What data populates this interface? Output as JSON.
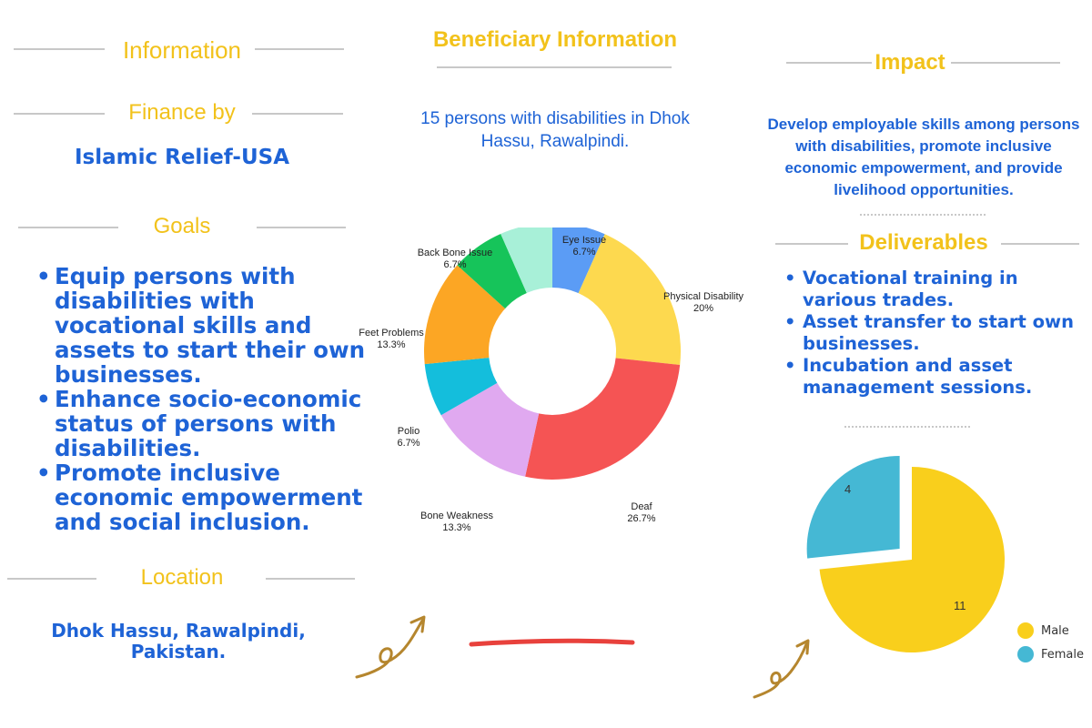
{
  "left": {
    "information_title": "Information",
    "finance_title": "Finance by",
    "finance_value": "Islamic Relief-USA",
    "goals_title": "Goals",
    "goals": [
      "Equip persons with disabilities with vocational skills and assets to start their own businesses.",
      "Enhance socio-economic status of persons with disabilities.",
      "Promote inclusive economic empowerment and social inclusion."
    ],
    "location_title": "Location",
    "location_value": "Dhok Hassu, Rawalpindi, Pakistan."
  },
  "middle": {
    "title": "Beneficiary Information",
    "description": "15 persons with disabilities in Dhok Hassu, Rawalpindi."
  },
  "right": {
    "impact_title": "Impact",
    "impact_text": "Develop employable skills among persons with disabilities, promote inclusive economic empowerment, and provide livelihood opportunities.",
    "deliverables_title": "Deliverables",
    "deliverables": [
      "Vocational training in various trades.",
      "Asset transfer to start own businesses.",
      "Incubation and asset management sessions."
    ]
  },
  "colors": {
    "accent_yellow": "#f2c21b",
    "text_blue": "#1e63d6",
    "underline_red": "#e8413c"
  },
  "chart_data": [
    {
      "type": "donut",
      "title": "",
      "categories": [
        "Eye Issue",
        "Physical Disability",
        "Deaf",
        "Bone Weakness",
        "Polio",
        "Feet Problems",
        "Back Bone Issue"
      ],
      "values": [
        6.7,
        20,
        26.7,
        13.3,
        6.7,
        13.3,
        6.7
      ],
      "labels": [
        "6.7%",
        "20%",
        "26.7%",
        "13.3%",
        "6.7%",
        "13.3%",
        "6.7%"
      ],
      "colors": [
        "#5b9cf5",
        "#fdd94f",
        "#f55454",
        "#e0a9f0",
        "#14bedc",
        "#fca624",
        "#16c45a"
      ],
      "extra_color": "#a8f0d8"
    },
    {
      "type": "pie",
      "categories": [
        "Male",
        "Female"
      ],
      "values": [
        11,
        4
      ],
      "labels": [
        "11",
        "4"
      ],
      "colors": [
        "#f9cf1c",
        "#45b8d4"
      ],
      "legend": "bottom-right"
    }
  ]
}
